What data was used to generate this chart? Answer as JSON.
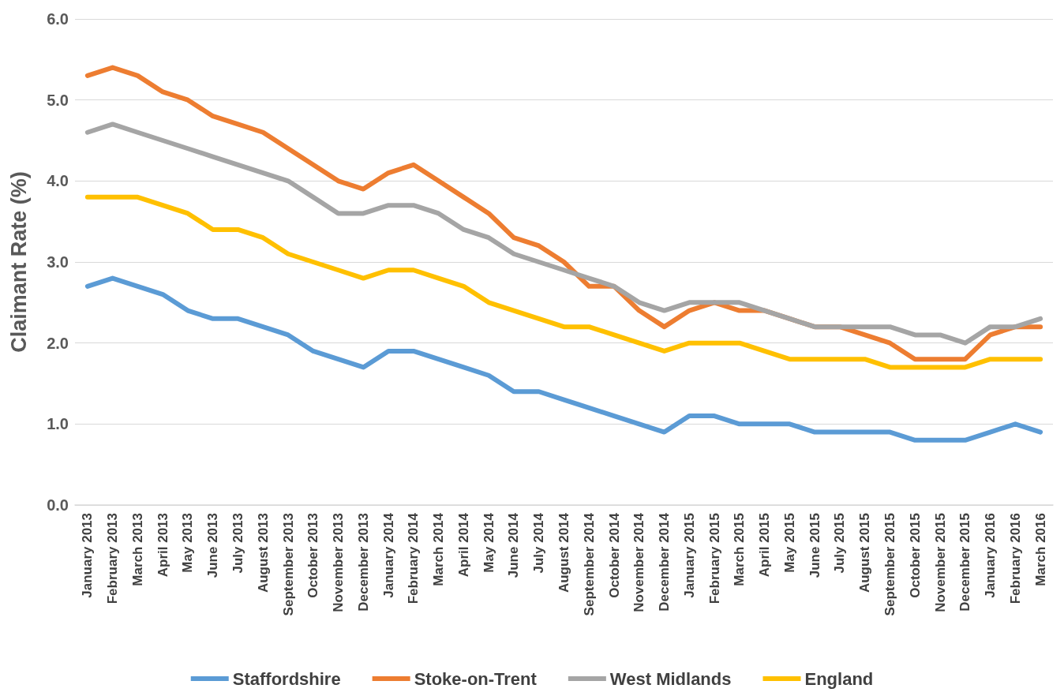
{
  "chart_data": {
    "type": "line",
    "ylabel": "Claimant Rate (%)",
    "categories": [
      "January 2013",
      "February 2013",
      "March 2013",
      "April 2013",
      "May 2013",
      "June 2013",
      "July 2013",
      "August 2013",
      "September 2013",
      "October 2013",
      "November 2013",
      "December 2013",
      "January 2014",
      "February 2014",
      "March 2014",
      "April 2014",
      "May 2014",
      "June 2014",
      "July 2014",
      "August 2014",
      "September 2014",
      "October 2014",
      "November 2014",
      "December 2014",
      "January 2015",
      "February 2015",
      "March 2015",
      "April 2015",
      "May 2015",
      "June 2015",
      "July 2015",
      "August 2015",
      "September 2015",
      "October 2015",
      "November 2015",
      "December 2015",
      "January 2016",
      "February 2016",
      "March 2016"
    ],
    "series": [
      {
        "name": "Staffordshire",
        "color": "#5b9bd5",
        "values": [
          2.7,
          2.8,
          2.7,
          2.6,
          2.4,
          2.3,
          2.3,
          2.2,
          2.1,
          1.9,
          1.8,
          1.7,
          1.9,
          1.9,
          1.8,
          1.7,
          1.6,
          1.4,
          1.4,
          1.3,
          1.2,
          1.1,
          1.0,
          0.9,
          1.1,
          1.1,
          1.0,
          1.0,
          1.0,
          0.9,
          0.9,
          0.9,
          0.9,
          0.8,
          0.8,
          0.8,
          0.9,
          1.0,
          0.9
        ]
      },
      {
        "name": "Stoke-on-Trent",
        "color": "#ed7d31",
        "values": [
          5.3,
          5.4,
          5.3,
          5.1,
          5.0,
          4.8,
          4.7,
          4.6,
          4.4,
          4.2,
          4.0,
          3.9,
          4.1,
          4.2,
          4.0,
          3.8,
          3.6,
          3.3,
          3.2,
          3.0,
          2.7,
          2.7,
          2.4,
          2.2,
          2.4,
          2.5,
          2.4,
          2.4,
          2.3,
          2.2,
          2.2,
          2.1,
          2.0,
          1.8,
          1.8,
          1.8,
          2.1,
          2.2,
          2.2
        ]
      },
      {
        "name": "West Midlands",
        "color": "#a5a5a5",
        "values": [
          4.6,
          4.7,
          4.6,
          4.5,
          4.4,
          4.3,
          4.2,
          4.1,
          4.0,
          3.8,
          3.6,
          3.6,
          3.7,
          3.7,
          3.6,
          3.4,
          3.3,
          3.1,
          3.0,
          2.9,
          2.8,
          2.7,
          2.5,
          2.4,
          2.5,
          2.5,
          2.5,
          2.4,
          2.3,
          2.2,
          2.2,
          2.2,
          2.2,
          2.1,
          2.1,
          2.0,
          2.2,
          2.2,
          2.3
        ]
      },
      {
        "name": "England",
        "color": "#ffc000",
        "values": [
          3.8,
          3.8,
          3.8,
          3.7,
          3.6,
          3.4,
          3.4,
          3.3,
          3.1,
          3.0,
          2.9,
          2.8,
          2.9,
          2.9,
          2.8,
          2.7,
          2.5,
          2.4,
          2.3,
          2.2,
          2.2,
          2.1,
          2.0,
          1.9,
          2.0,
          2.0,
          2.0,
          1.9,
          1.8,
          1.8,
          1.8,
          1.8,
          1.7,
          1.7,
          1.7,
          1.7,
          1.8,
          1.8,
          1.8
        ]
      }
    ],
    "ylim": [
      0,
      6
    ],
    "yticks": [
      {
        "value": 0,
        "label": "0.0"
      },
      {
        "value": 1,
        "label": "1.0"
      },
      {
        "value": 2,
        "label": "2.0"
      },
      {
        "value": 3,
        "label": "3.0"
      },
      {
        "value": 4,
        "label": "4.0"
      },
      {
        "value": 5,
        "label": "5.0"
      },
      {
        "value": 6,
        "label": "6.0"
      }
    ],
    "grid": "y",
    "legend": "bottom",
    "marker": "none",
    "line_style": "solid"
  }
}
